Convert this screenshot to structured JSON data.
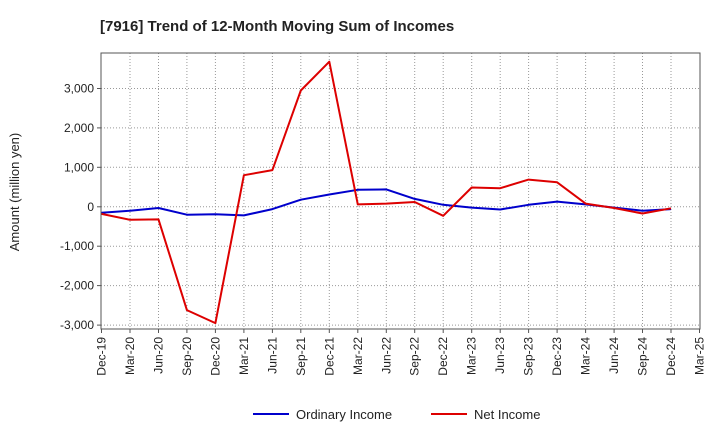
{
  "chart_data": {
    "type": "line",
    "title": "[7916]  Trend of 12-Month Moving Sum of Incomes",
    "xlabel": "",
    "ylabel": "Amount (million yen)",
    "ylim": [
      -3100,
      3900
    ],
    "yticks": [
      3000,
      2000,
      1000,
      0,
      -1000,
      -2000,
      -3000
    ],
    "ytick_labels": [
      "3,000",
      "2,000",
      "1,000",
      "0",
      "-1,000",
      "-2,000",
      "-3,000"
    ],
    "categories": [
      "Dec-19",
      "Mar-20",
      "Jun-20",
      "Sep-20",
      "Dec-20",
      "Mar-21",
      "Jun-21",
      "Sep-21",
      "Dec-21",
      "Mar-22",
      "Jun-22",
      "Sep-22",
      "Dec-22",
      "Mar-23",
      "Jun-23",
      "Sep-23",
      "Dec-23",
      "Mar-24",
      "Jun-24",
      "Sep-24",
      "Dec-24",
      "Mar-25"
    ],
    "grid": true,
    "legend_position": "bottom-center",
    "series": [
      {
        "name": "Ordinary Income",
        "color": "#0000cc",
        "values": [
          -150,
          -100,
          -30,
          -200,
          -190,
          -220,
          -60,
          180,
          310,
          430,
          440,
          200,
          50,
          -20,
          -70,
          50,
          130,
          60,
          -20,
          -100,
          -60,
          null
        ]
      },
      {
        "name": "Net Income",
        "color": "#dd0000",
        "values": [
          -180,
          -330,
          -320,
          -2620,
          -2950,
          800,
          930,
          2950,
          3680,
          60,
          80,
          120,
          -230,
          490,
          470,
          690,
          620,
          80,
          -30,
          -170,
          -40,
          null
        ]
      }
    ]
  }
}
